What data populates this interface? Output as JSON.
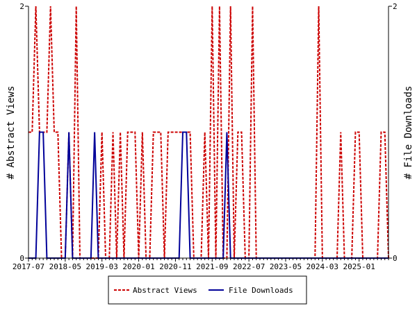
{
  "chart_data": {
    "type": "line",
    "title": "",
    "ylabel_left": "# Abstract Views",
    "ylabel_right": "# File Downloads",
    "ylim": [
      0,
      2
    ],
    "y_ticks_left": [
      "0",
      "2"
    ],
    "y_ticks_right": [
      "0",
      "2"
    ],
    "x_tick_labels": [
      "2017-07",
      "2018-05",
      "2019-03",
      "2020-01",
      "2020-11",
      "2021-09",
      "2022-07",
      "2023-05",
      "2024-03",
      "2025-01"
    ],
    "x_start": "2017-07",
    "month_count": 99,
    "legend_position": "bottom",
    "grid": false,
    "series": [
      {
        "name": "Abstract Views",
        "color": "#cc0000",
        "dash": true,
        "values": [
          1,
          1,
          2,
          1,
          1,
          1,
          2,
          1,
          1,
          0,
          0,
          1,
          0,
          2,
          0,
          0,
          0,
          0,
          0,
          0,
          1,
          0,
          0,
          1,
          0,
          1,
          0,
          1,
          1,
          1,
          0,
          1,
          0,
          0,
          1,
          1,
          1,
          0,
          1,
          1,
          1,
          1,
          1,
          1,
          1,
          0,
          0,
          0,
          1,
          0,
          2,
          0,
          2,
          0,
          0,
          2,
          0,
          1,
          1,
          0,
          0,
          2,
          0,
          0,
          0,
          0,
          0,
          0,
          0,
          0,
          0,
          0,
          0,
          0,
          0,
          0,
          0,
          0,
          0,
          2,
          0,
          0,
          0,
          0,
          0,
          1,
          0,
          0,
          0,
          1,
          1,
          0,
          0,
          0,
          0,
          0,
          1,
          1,
          0
        ]
      },
      {
        "name": "File Downloads",
        "color": "#000099",
        "dash": false,
        "values": [
          0,
          0,
          0,
          1,
          1,
          0,
          0,
          0,
          0,
          0,
          0,
          1,
          0,
          0,
          0,
          0,
          0,
          0,
          1,
          0,
          0,
          0,
          0,
          0,
          0,
          0,
          0,
          0,
          0,
          0,
          0,
          0,
          0,
          0,
          0,
          0,
          0,
          0,
          0,
          0,
          0,
          0,
          1,
          1,
          0,
          0,
          0,
          0,
          0,
          0,
          0,
          0,
          0,
          0,
          1,
          0,
          0,
          0,
          0,
          0,
          0,
          0,
          0,
          0,
          0,
          0,
          0,
          0,
          0,
          0,
          0,
          0,
          0,
          0,
          0,
          0,
          0,
          0,
          0,
          0,
          0,
          0,
          0,
          0,
          0,
          0,
          0,
          0,
          0,
          0,
          0,
          0,
          0,
          0,
          0,
          0,
          0,
          0,
          0
        ]
      }
    ]
  },
  "colors": {
    "views": "#cc0000",
    "downloads": "#000099",
    "axis": "#000000"
  }
}
